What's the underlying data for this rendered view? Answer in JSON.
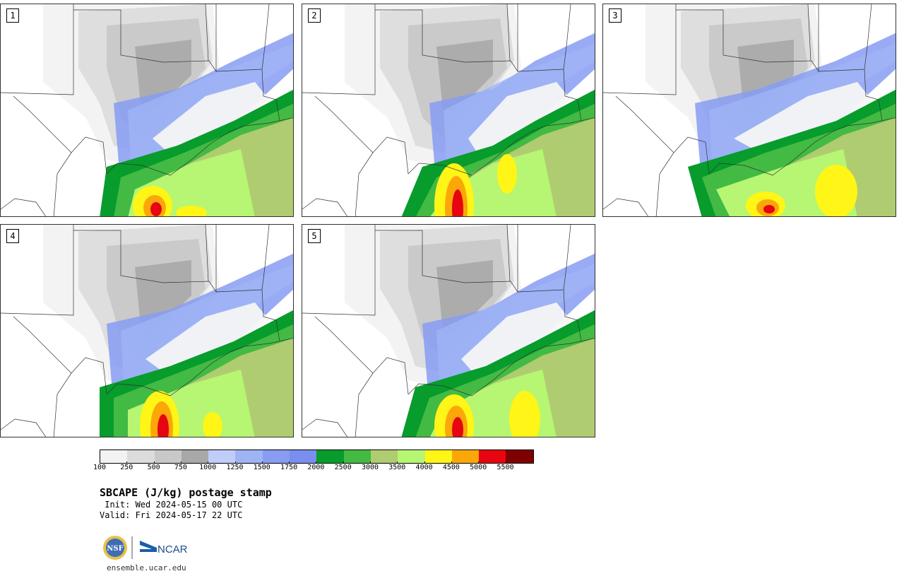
{
  "panels": [
    {
      "label": "1",
      "variant": 0
    },
    {
      "label": "2",
      "variant": 1
    },
    {
      "label": "3",
      "variant": 2
    },
    {
      "label": "4",
      "variant": 3
    },
    {
      "label": "5",
      "variant": 4
    }
  ],
  "colorbar": {
    "colors": [
      "#f2f2f2",
      "#dcdcdc",
      "#c8c8c8",
      "#a8a8a8",
      "#c0cdf9",
      "#9fb4f5",
      "#879cf2",
      "#7a8ef0",
      "#079c2c",
      "#43ba43",
      "#b0cc70",
      "#b6f672",
      "#fff516",
      "#fba70a",
      "#e60510",
      "#7f0000"
    ],
    "ticks": [
      "100",
      "250",
      "500",
      "750",
      "1000",
      "1250",
      "1500",
      "1750",
      "2000",
      "2500",
      "3000",
      "3500",
      "4000",
      "4500",
      "5000",
      "5500"
    ]
  },
  "title": "SBCAPE (J/kg) postage stamp",
  "init": " Init: Wed 2024-05-15 00 UTC",
  "valid": "Valid: Fri 2024-05-17 22 UTC",
  "logos": {
    "nsf": "NSF",
    "ncar": "NCAR"
  },
  "url": "ensemble.ucar.edu"
}
